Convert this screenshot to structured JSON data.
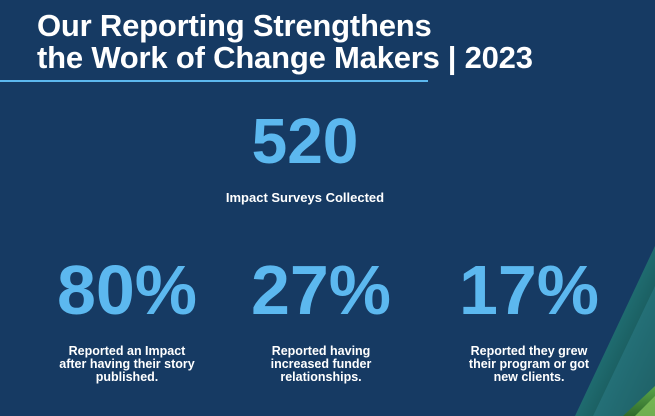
{
  "title": {
    "line1": "Our Reporting Strengthens",
    "line2": "the Work of Change Makers",
    "year": "| 2023"
  },
  "headline": {
    "value": "520",
    "label": "Impact Surveys Collected"
  },
  "stats": [
    {
      "value": "80%",
      "label_lines": [
        "Reported an Impact",
        "after having their story",
        "published."
      ]
    },
    {
      "value": "27%",
      "label_lines": [
        "Reported having",
        "increased funder",
        "relationships."
      ]
    },
    {
      "value": "17%",
      "label_lines": [
        "Reported they grew",
        "their program or got",
        "new clients."
      ]
    }
  ],
  "colors": {
    "background": "#163a63",
    "accent": "#5cb8ef",
    "text": "#ffffff"
  }
}
